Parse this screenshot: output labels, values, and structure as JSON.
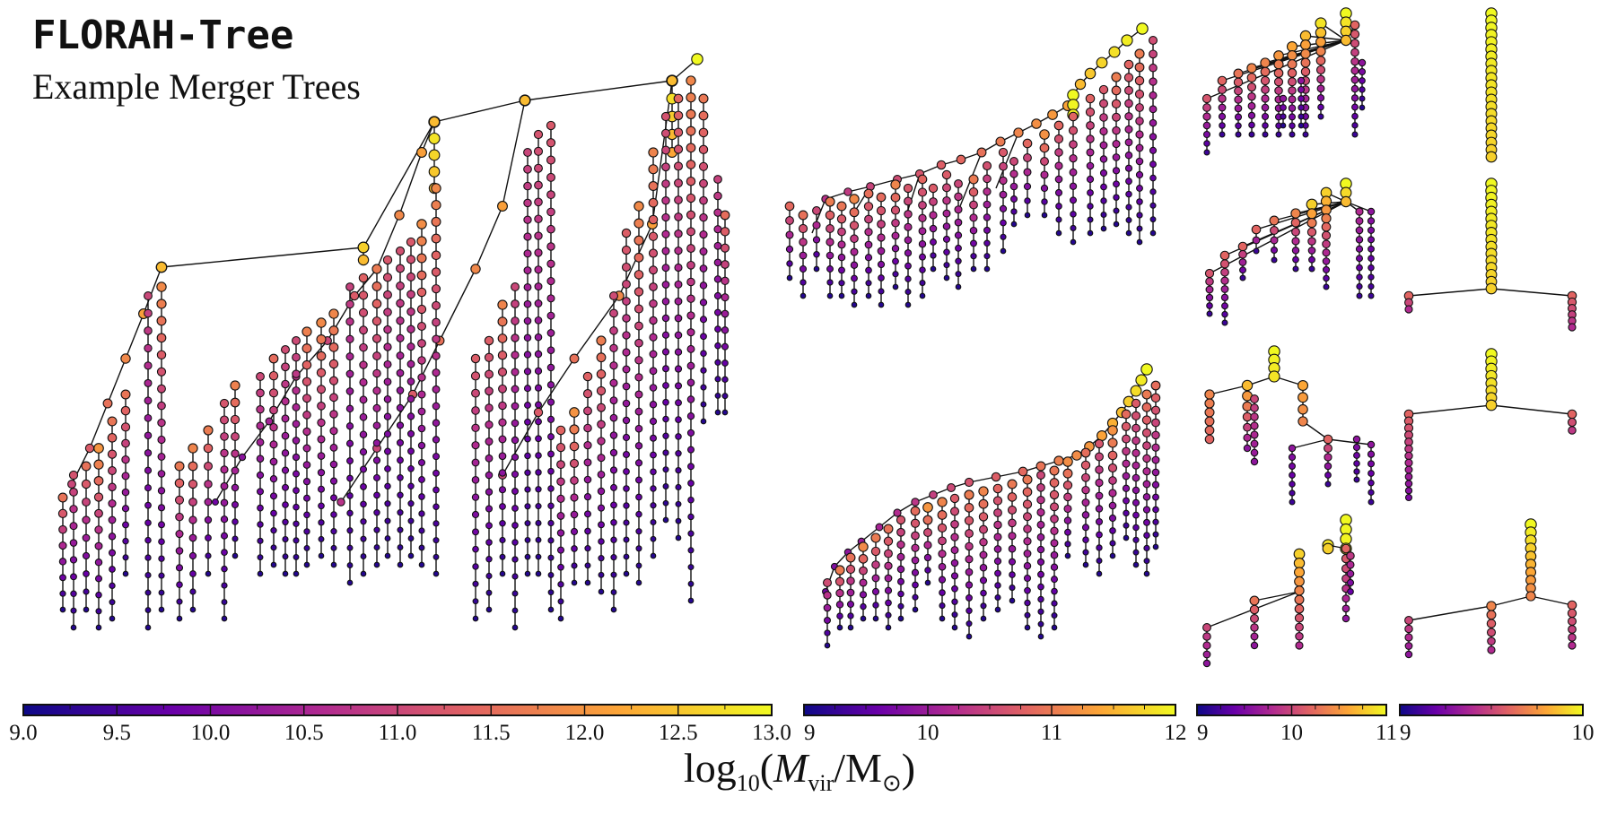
{
  "title": "FLORAH-Tree",
  "subtitle": "Example Merger Trees",
  "axis_label": {
    "prefix": "log",
    "sub": "10",
    "open": "(",
    "mvar": "M",
    "mvar_sub": "vir",
    "slash": "/M",
    "sun": "⊙",
    "close": ")"
  },
  "colormap": [
    "#0d0887",
    "#6a00a8",
    "#b12a90",
    "#e16462",
    "#fca636",
    "#f0f921"
  ],
  "colorbars": [
    {
      "name": "colorbar-main",
      "min": 9.0,
      "max": 13.0,
      "ticks": [
        "9.0",
        "9.5",
        "10.0",
        "10.5",
        "11.0",
        "11.5",
        "12.0",
        "12.5",
        "13.0"
      ]
    },
    {
      "name": "colorbar-medium",
      "min": 9,
      "max": 12,
      "ticks": [
        "9",
        "10",
        "11",
        "12"
      ]
    },
    {
      "name": "colorbar-small",
      "min": 9,
      "max": 11,
      "ticks": [
        "9",
        "10",
        "11"
      ]
    },
    {
      "name": "colorbar-tiny",
      "min": 9,
      "max": 10,
      "ticks": [
        "9",
        "10"
      ]
    }
  ]
}
